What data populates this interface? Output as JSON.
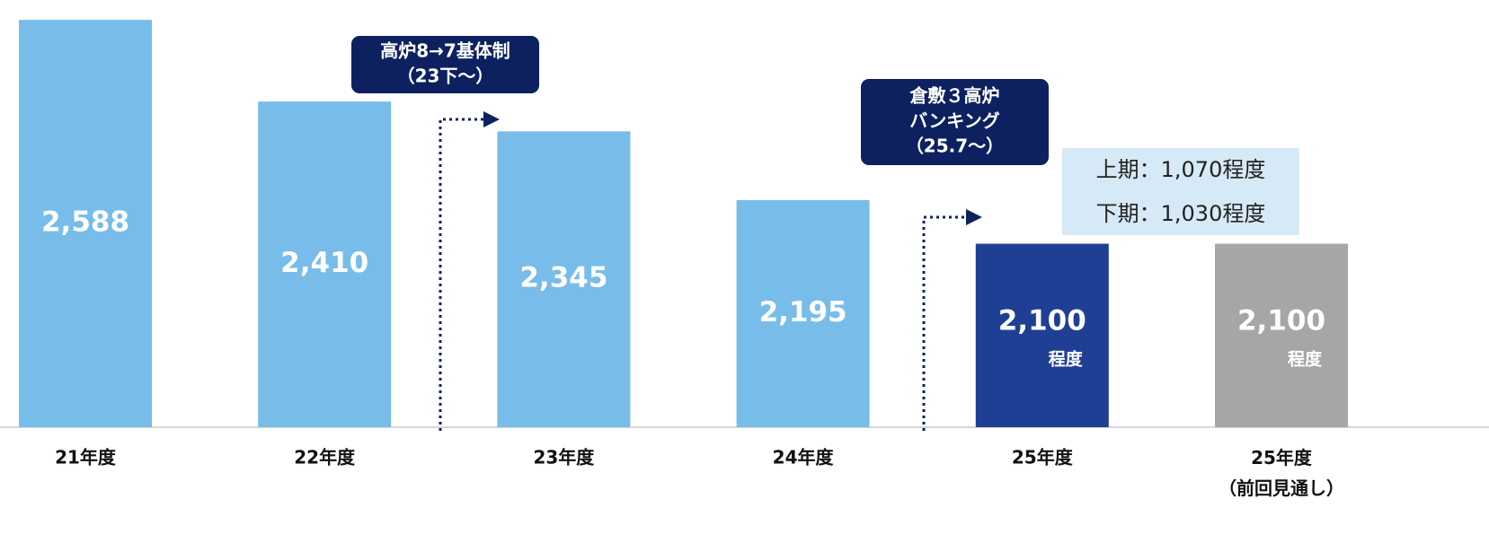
{
  "chart_data": {
    "type": "bar",
    "categories": [
      "21年度",
      "22年度",
      "23年度",
      "24年度",
      "25年度",
      "25年度\n（前回見通し）"
    ],
    "values": [
      2588,
      2410,
      2345,
      2195,
      2100,
      2100
    ],
    "value_labels": [
      "2,588",
      "2,410",
      "2,345",
      "2,195",
      "2,100",
      "2,100"
    ],
    "value_sublabels": [
      null,
      null,
      null,
      null,
      "程度",
      "程度"
    ],
    "colors": [
      "#78bde9",
      "#78bde9",
      "#78bde9",
      "#78bde9",
      "#1f3f94",
      "#a6a6a6"
    ],
    "ylim": [
      1700,
      2600
    ],
    "annotations": [
      {
        "lines": [
          "高炉8→7基体制",
          "（23下～）"
        ]
      },
      {
        "lines": [
          "倉敷３高炉",
          "バンキング",
          "（25.7～）"
        ]
      }
    ],
    "note_lines": [
      "上期：1,070程度",
      "下期：1,030程度"
    ]
  }
}
